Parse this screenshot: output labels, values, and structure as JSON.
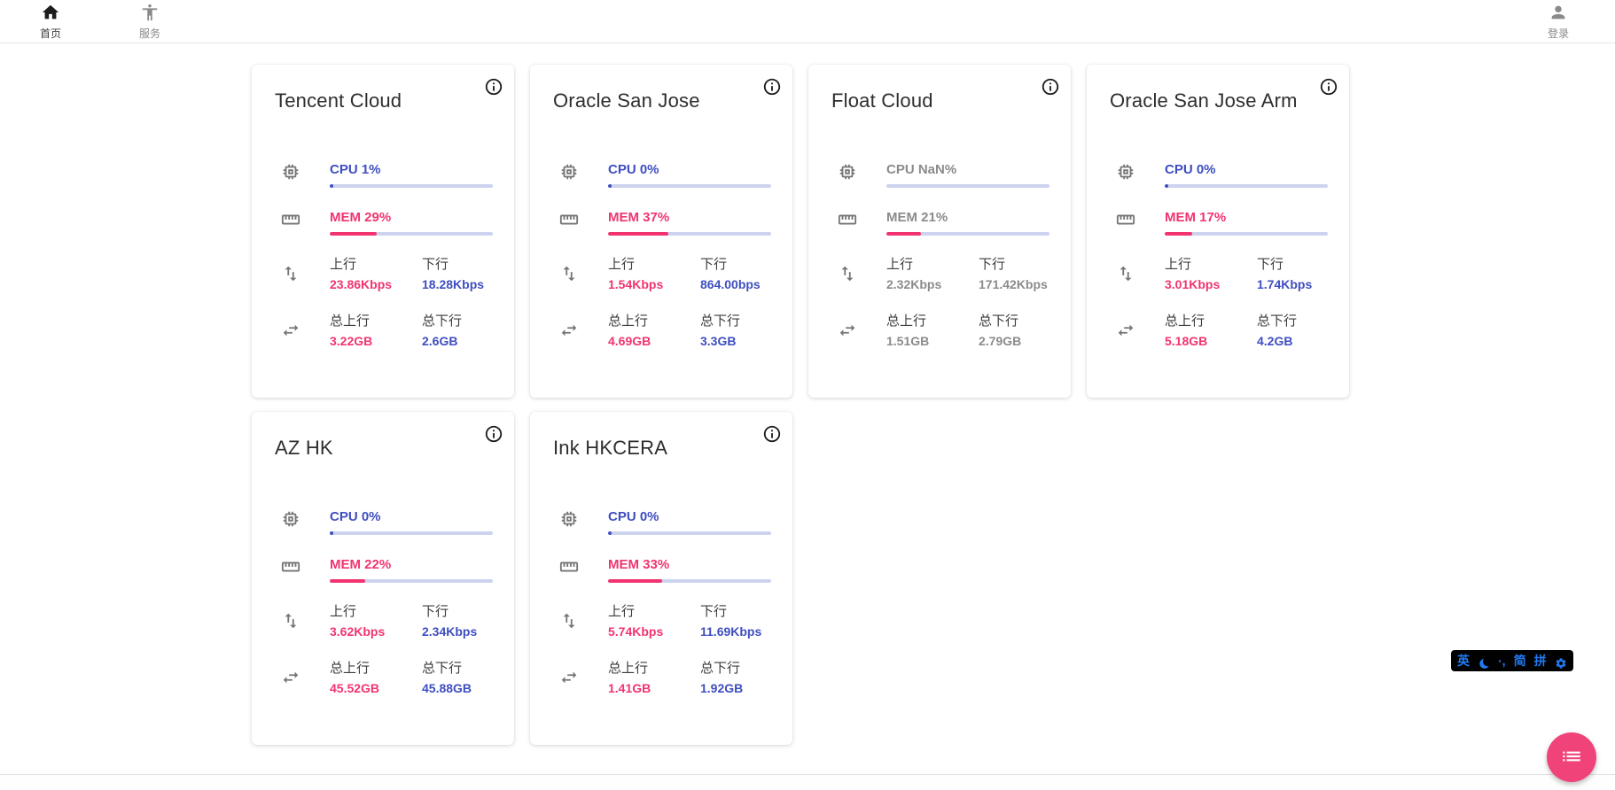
{
  "nav": {
    "items": [
      {
        "label": "首页",
        "icon": "home-icon",
        "active": true
      },
      {
        "label": "服务",
        "icon": "services-icon",
        "active": false
      }
    ],
    "login_label": "登录"
  },
  "labels": {
    "up": "上行",
    "down": "下行",
    "total_up": "总上行",
    "total_down": "总下行"
  },
  "colors": {
    "accent_blue": "#3e4ec0",
    "accent_pink": "#f1346f",
    "bar_track": "#cdd3ee",
    "gray_value": "#8b8b8b",
    "fab_pink": "#f0437a",
    "ime_blue": "#217bf4"
  },
  "servers": [
    {
      "name": "Tencent Cloud",
      "cpu": "CPU 1%",
      "cpu_pct": 1,
      "mem": "MEM 29%",
      "mem_pct": 29,
      "up": "23.86Kbps",
      "down": "18.28Kbps",
      "total_up": "3.22GB",
      "total_down": "2.6GB",
      "state": "online"
    },
    {
      "name": "Oracle San Jose",
      "cpu": "CPU 0%",
      "cpu_pct": 0,
      "mem": "MEM 37%",
      "mem_pct": 37,
      "up": "1.54Kbps",
      "down": "864.00bps",
      "total_up": "4.69GB",
      "total_down": "3.3GB",
      "state": "online"
    },
    {
      "name": "Float Cloud",
      "cpu": "CPU NaN%",
      "cpu_pct": null,
      "mem": "MEM 21%",
      "mem_pct": 21,
      "up": "2.32Kbps",
      "down": "171.42Kbps",
      "total_up": "1.51GB",
      "total_down": "2.79GB",
      "state": "unknown"
    },
    {
      "name": "Oracle San Jose Arm",
      "cpu": "CPU 0%",
      "cpu_pct": 0,
      "mem": "MEM 17%",
      "mem_pct": 17,
      "up": "3.01Kbps",
      "down": "1.74Kbps",
      "total_up": "5.18GB",
      "total_down": "4.2GB",
      "state": "online"
    },
    {
      "name": "AZ HK",
      "cpu": "CPU 0%",
      "cpu_pct": 0,
      "mem": "MEM 22%",
      "mem_pct": 22,
      "up": "3.62Kbps",
      "down": "2.34Kbps",
      "total_up": "45.52GB",
      "total_down": "45.88GB",
      "state": "online"
    },
    {
      "name": "Ink HKCERA",
      "cpu": "CPU 0%",
      "cpu_pct": 0,
      "mem": "MEM 33%",
      "mem_pct": 33,
      "up": "5.74Kbps",
      "down": "11.69Kbps",
      "total_up": "1.41GB",
      "total_down": "1.92GB",
      "state": "online"
    }
  ],
  "ime": {
    "lang": "英",
    "punct": "·,",
    "simplified": "简",
    "scheme": "拼"
  }
}
